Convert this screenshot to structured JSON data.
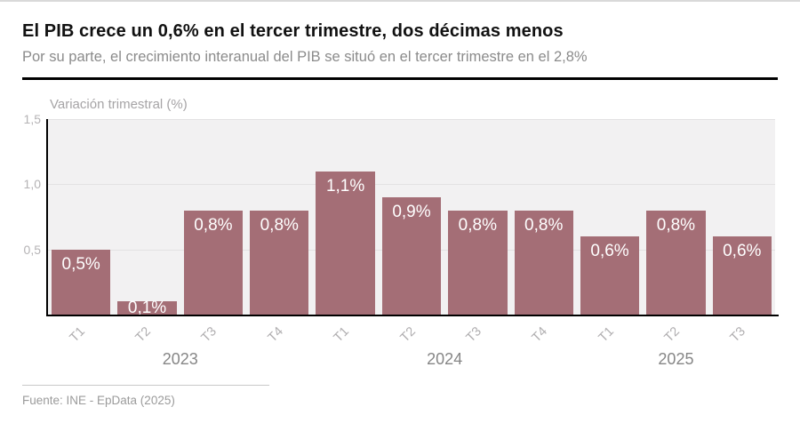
{
  "header": {
    "title": "El PIB crece un 0,6% en el tercer trimestre, dos décimas menos",
    "subtitle": "Por su parte, el crecimiento interanual del PIB se situó en el tercer trimestre en el 2,8%"
  },
  "chart_data": {
    "type": "bar",
    "axis_title": "Variación trimestral (%)",
    "categories": [
      "T1",
      "T2",
      "T3",
      "T4",
      "T1",
      "T2",
      "T3",
      "T4",
      "T1",
      "T2",
      "T3"
    ],
    "values": [
      0.5,
      0.1,
      0.8,
      0.8,
      1.1,
      0.9,
      0.8,
      0.8,
      0.6,
      0.8,
      0.6
    ],
    "bar_labels": [
      "0,5%",
      "0,1%",
      "0,8%",
      "0,8%",
      "1,1%",
      "0,9%",
      "0,8%",
      "0,8%",
      "0,6%",
      "0,8%",
      "0,6%"
    ],
    "year_groups": [
      {
        "label": "2023",
        "span": 4
      },
      {
        "label": "2024",
        "span": 4
      },
      {
        "label": "2025",
        "span": 3
      }
    ],
    "y_ticks": [
      {
        "label": "1,5",
        "value": 1.5
      },
      {
        "label": "1,0",
        "value": 1.0
      },
      {
        "label": "0,5",
        "value": 0.5
      }
    ],
    "ylim": [
      0,
      1.5
    ],
    "grid": true,
    "legend": "none",
    "bar_color": "#a46e76",
    "plot_bg": "#f2f1f2"
  },
  "footer": {
    "source": "Fuente: INE - EpData (2025)"
  }
}
